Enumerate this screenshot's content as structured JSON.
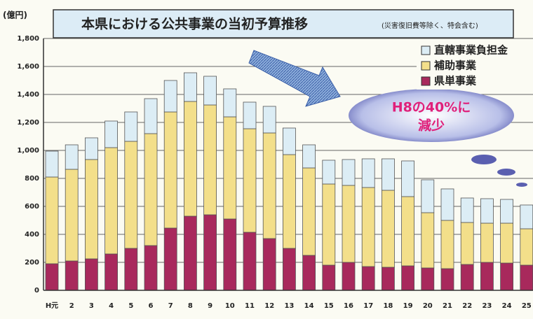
{
  "chart_data": {
    "type": "stacked_bar",
    "title": "本県における公共事業の当初予算推移",
    "subtitle": "(災害復旧費等除く、特会含む)",
    "y_label": "(億円)",
    "annotation": [
      "H8の40%に",
      "減少"
    ],
    "categories": [
      "H元",
      "2",
      "3",
      "4",
      "5",
      "6",
      "7",
      "8",
      "9",
      "10",
      "11",
      "12",
      "13",
      "14",
      "15",
      "16",
      "17",
      "18",
      "19",
      "20",
      "21",
      "22",
      "23",
      "24",
      "25"
    ],
    "series": [
      {
        "name": "県単事業",
        "color": "#a8295c",
        "values": [
          190,
          210,
          225,
          260,
          300,
          320,
          445,
          530,
          540,
          510,
          415,
          370,
          300,
          250,
          180,
          200,
          170,
          165,
          175,
          160,
          155,
          185,
          200,
          195,
          180
        ]
      },
      {
        "name": "補助事業",
        "color": "#f3df8a",
        "values": [
          620,
          655,
          710,
          760,
          765,
          800,
          830,
          820,
          785,
          730,
          740,
          755,
          670,
          625,
          580,
          550,
          565,
          550,
          495,
          395,
          345,
          300,
          280,
          285,
          260
        ]
      },
      {
        "name": "直轄事業負担金",
        "color": "#dcedf5",
        "values": [
          185,
          175,
          155,
          190,
          210,
          250,
          225,
          205,
          205,
          200,
          190,
          190,
          190,
          165,
          170,
          185,
          205,
          225,
          255,
          235,
          225,
          175,
          175,
          170,
          170
        ]
      }
    ],
    "ylim": [
      0,
      1800
    ],
    "yticks": [
      0,
      200,
      400,
      600,
      800,
      {
        "value": 1000,
        "label": "1,000"
      },
      {
        "value": 1200,
        "label": "1,200"
      },
      {
        "value": 1400,
        "label": "1,400"
      },
      {
        "value": 1600,
        "label": "1,600"
      },
      {
        "value": 1800,
        "label": "1,800"
      }
    ],
    "grid": true,
    "legend": "top-right"
  }
}
